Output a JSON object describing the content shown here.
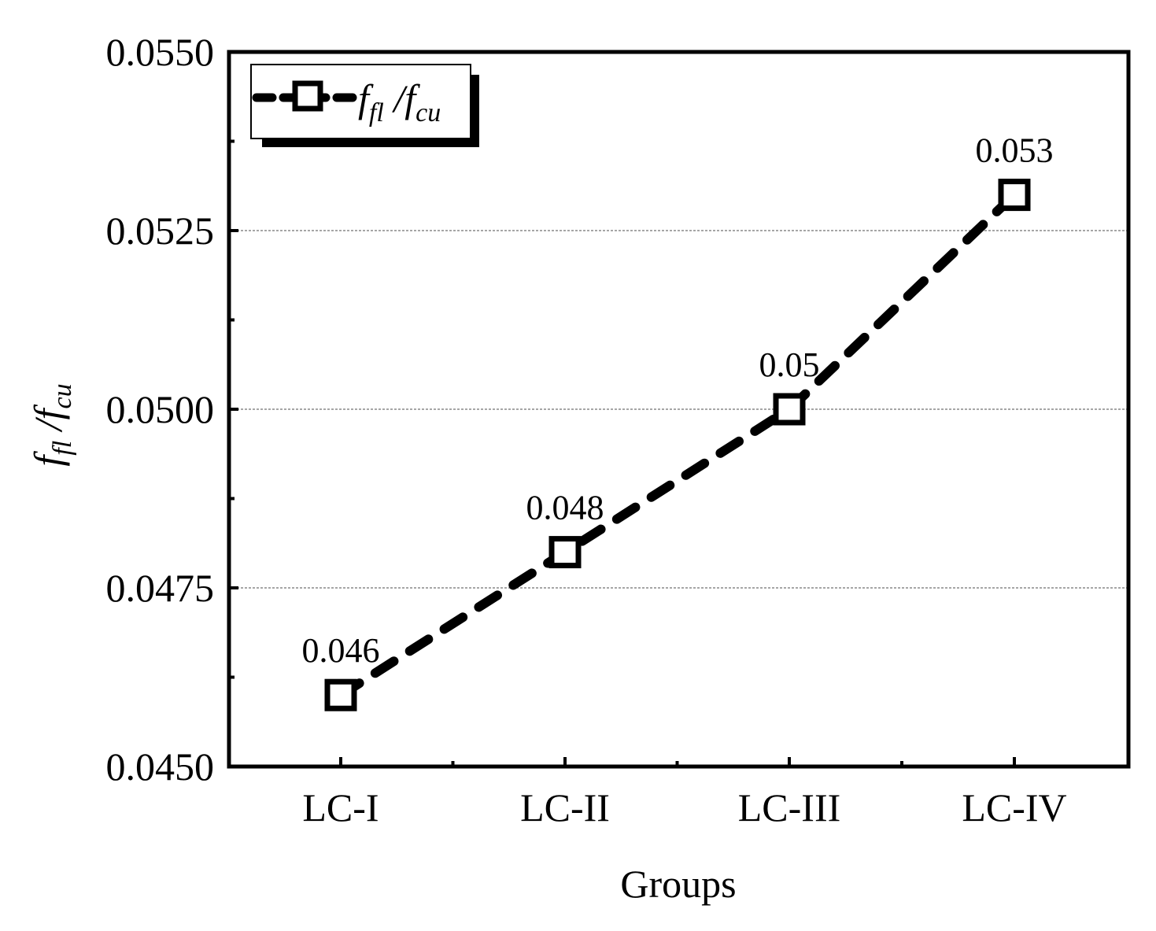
{
  "chart_data": {
    "type": "line",
    "categories": [
      "LC-I",
      "LC-II",
      "LC-III",
      "LC-IV"
    ],
    "series": [
      {
        "name": "f_fl/f_cu",
        "values": [
          0.046,
          0.048,
          0.05,
          0.053
        ],
        "data_labels": [
          "0.046",
          "0.048",
          "0.05",
          "0.053"
        ],
        "marker": "open-square",
        "line_style": "dashed"
      }
    ],
    "title": "",
    "xlabel": "Groups",
    "ylabel": "f_fl/f_cu",
    "ylim": [
      0.045,
      0.055
    ],
    "yticks": [
      0.045,
      0.0475,
      0.05,
      0.0525,
      0.055
    ],
    "ytick_labels": [
      "0.0450",
      "0.0475",
      "0.0500",
      "0.0525",
      "0.0550"
    ],
    "grid": "horizontal dashed",
    "legend": "top-left",
    "colors": {
      "line": "#000000",
      "grid": "#888888"
    }
  },
  "legend_text": {
    "main1": "f",
    "sub1": "fl",
    "sep": " /",
    "main2": "f",
    "sub2": "cu"
  },
  "ylabel_text": {
    "main1": "f",
    "sub1": "fl",
    "sep": " /",
    "main2": "f",
    "sub2": "cu"
  }
}
